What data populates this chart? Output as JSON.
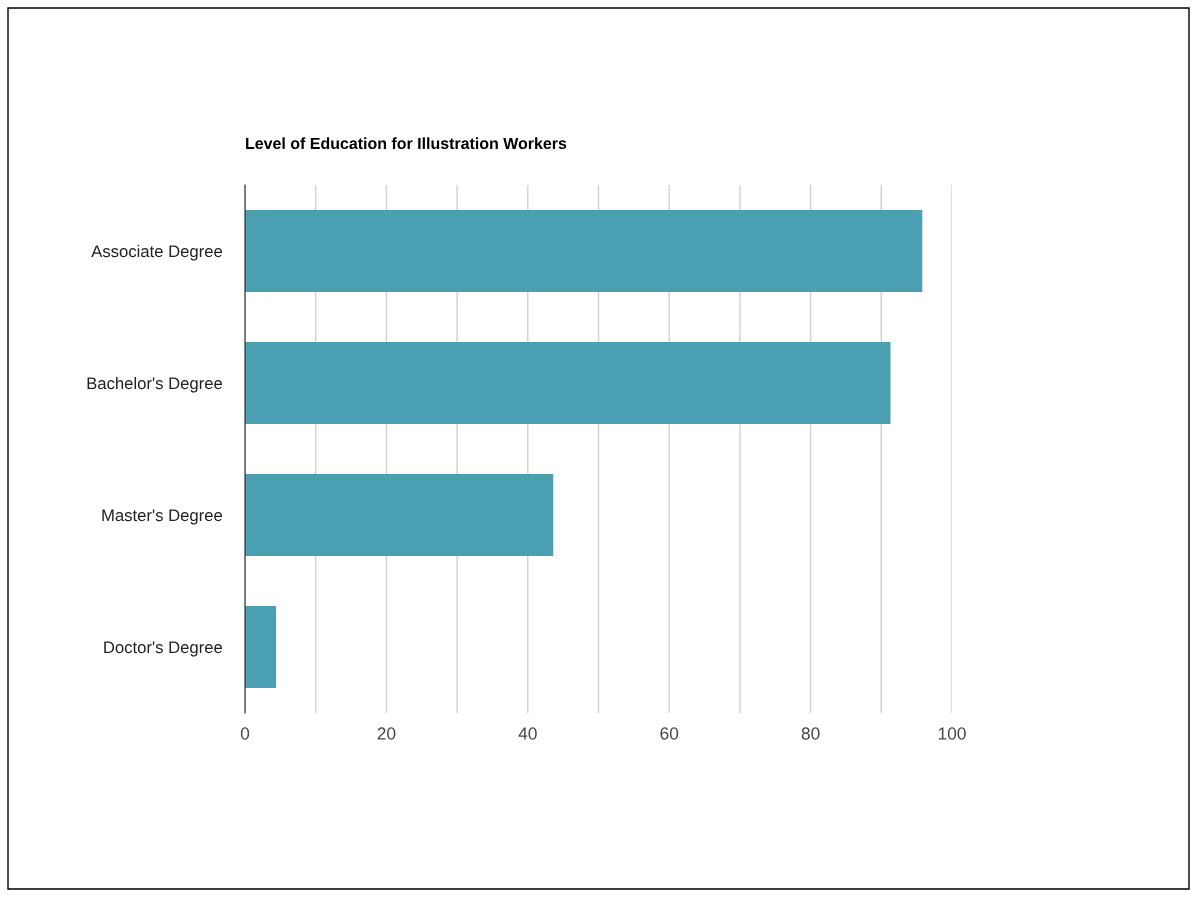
{
  "chart_data": {
    "type": "bar",
    "orientation": "horizontal",
    "title": "Level of Education for Illustration Workers",
    "categories": [
      "Associate Degree",
      "Bachelor's Degree",
      "Master's Degree",
      "Doctor's Degree"
    ],
    "values": [
      95.8,
      91.3,
      43.6,
      4.4
    ],
    "color": "#4aa0b2",
    "xlim": [
      0,
      100
    ],
    "xticks": [
      0,
      {
        "value": 10,
        "label": null
      },
      20,
      {
        "value": 30,
        "label": null
      },
      40,
      {
        "value": 50,
        "label": null
      },
      60,
      {
        "value": 70,
        "label": null
      },
      80,
      {
        "value": 90,
        "label": null
      },
      100
    ],
    "grid": "x"
  }
}
